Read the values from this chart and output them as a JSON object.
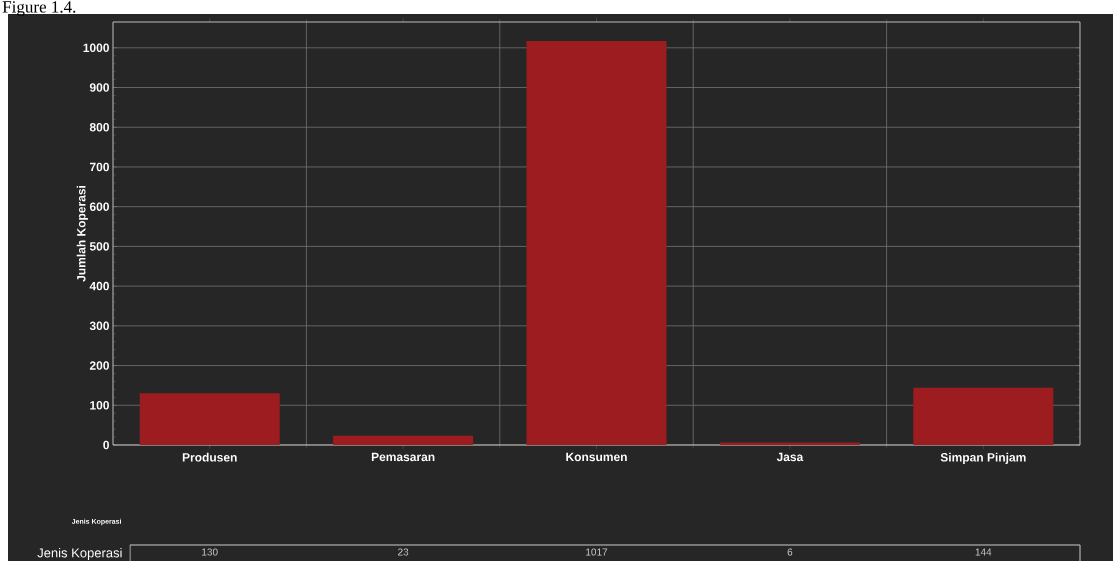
{
  "chart_data": {
    "type": "bar",
    "title": "Figure 1.4.",
    "ylabel": "Jumlah Koperasi",
    "categories": [
      "Produsen",
      "Pemasaran",
      "Konsumen",
      "Jasa",
      "Simpan Pinjam"
    ],
    "values": [
      130,
      23,
      1017,
      6,
      144
    ],
    "color": "#9c1c20",
    "ylim": [
      0,
      1065
    ],
    "yticks": [
      0,
      100,
      200,
      300,
      400,
      500,
      600,
      700,
      800,
      900,
      1000
    ],
    "grid": true,
    "data_labels": true,
    "annotations": [
      "Jenis Koperasi",
      "Jenis Koperasi"
    ]
  }
}
